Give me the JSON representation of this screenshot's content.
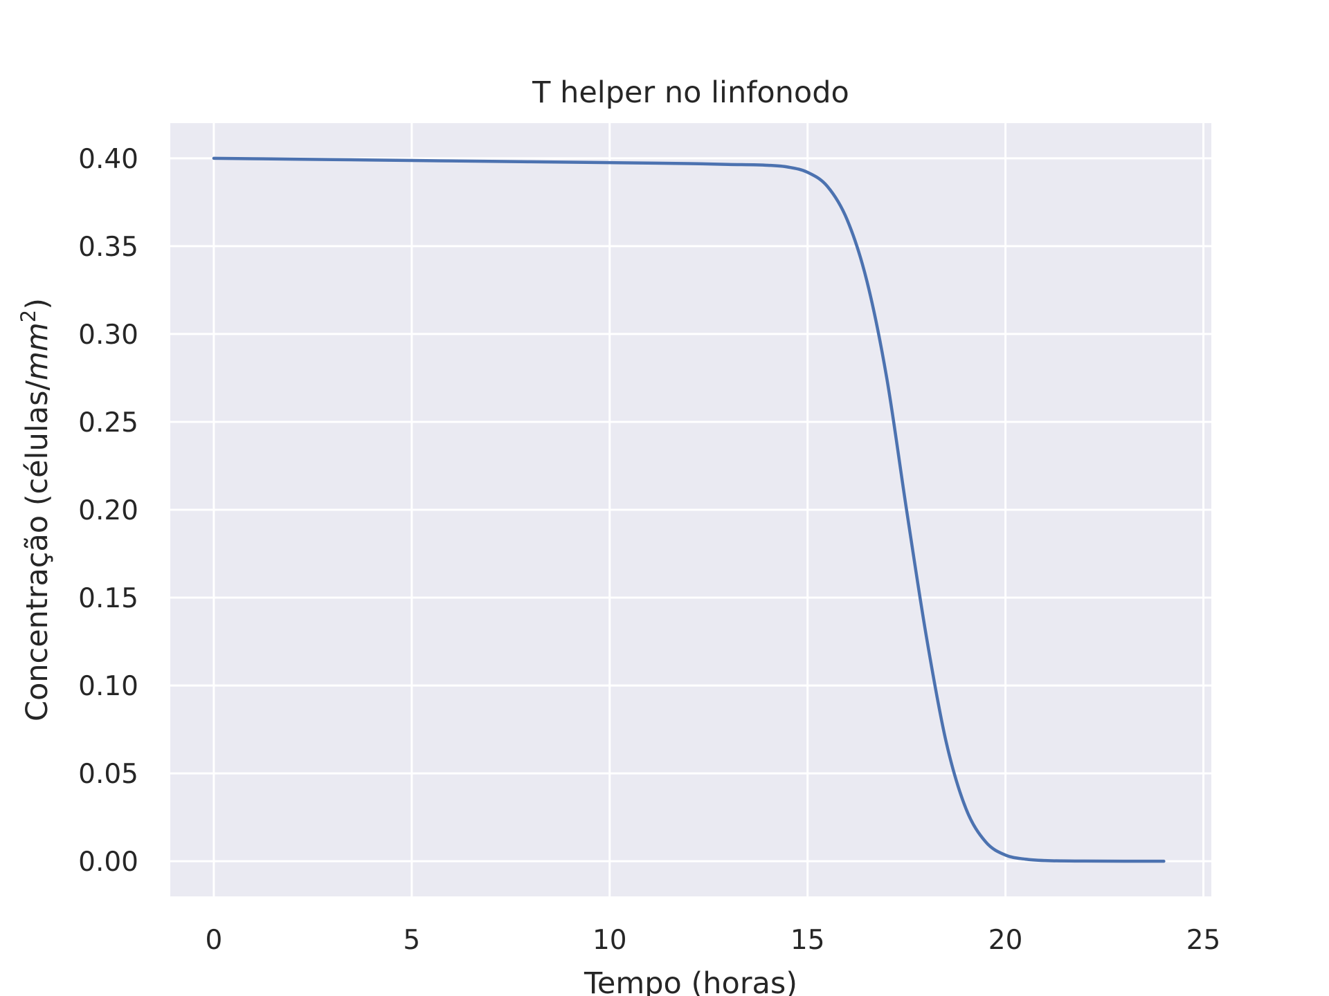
{
  "chart_data": {
    "type": "line",
    "title": "T helper no linfonodo",
    "xlabel": "Tempo (horas)",
    "ylabel_main": "Concentração (células/",
    "ylabel_unit": "mm",
    "ylabel_exp": "2",
    "ylabel_close": ")",
    "xlim": [
      -1.1,
      25.2
    ],
    "ylim": [
      -0.02,
      0.42
    ],
    "xticks": [
      0,
      5,
      10,
      15,
      20,
      25
    ],
    "yticks": [
      0.0,
      0.05,
      0.1,
      0.15,
      0.2,
      0.25,
      0.3,
      0.35,
      0.4
    ],
    "xtick_labels": [
      "0",
      "5",
      "10",
      "15",
      "20",
      "25"
    ],
    "ytick_labels": [
      "0.00",
      "0.05",
      "0.10",
      "0.15",
      "0.20",
      "0.25",
      "0.30",
      "0.35",
      "0.40"
    ],
    "grid": true,
    "series": [
      {
        "color": "#4c72b0",
        "x": [
          0,
          2,
          4,
          6,
          8,
          10,
          12,
          13,
          14,
          14.5,
          15,
          15.5,
          16,
          16.5,
          17,
          17.5,
          18,
          18.5,
          19,
          19.5,
          20,
          20.5,
          21,
          22,
          23,
          24
        ],
        "y": [
          0.4,
          0.3995,
          0.399,
          0.3985,
          0.398,
          0.3975,
          0.397,
          0.3965,
          0.396,
          0.395,
          0.392,
          0.384,
          0.365,
          0.33,
          0.275,
          0.2,
          0.128,
          0.068,
          0.03,
          0.011,
          0.0035,
          0.0012,
          0.0004,
          0.0001,
          0.0,
          0.0
        ]
      }
    ],
    "colors": {
      "plot_bg": "#eaeaf2",
      "grid": "#ffffff",
      "text": "#262626"
    }
  }
}
